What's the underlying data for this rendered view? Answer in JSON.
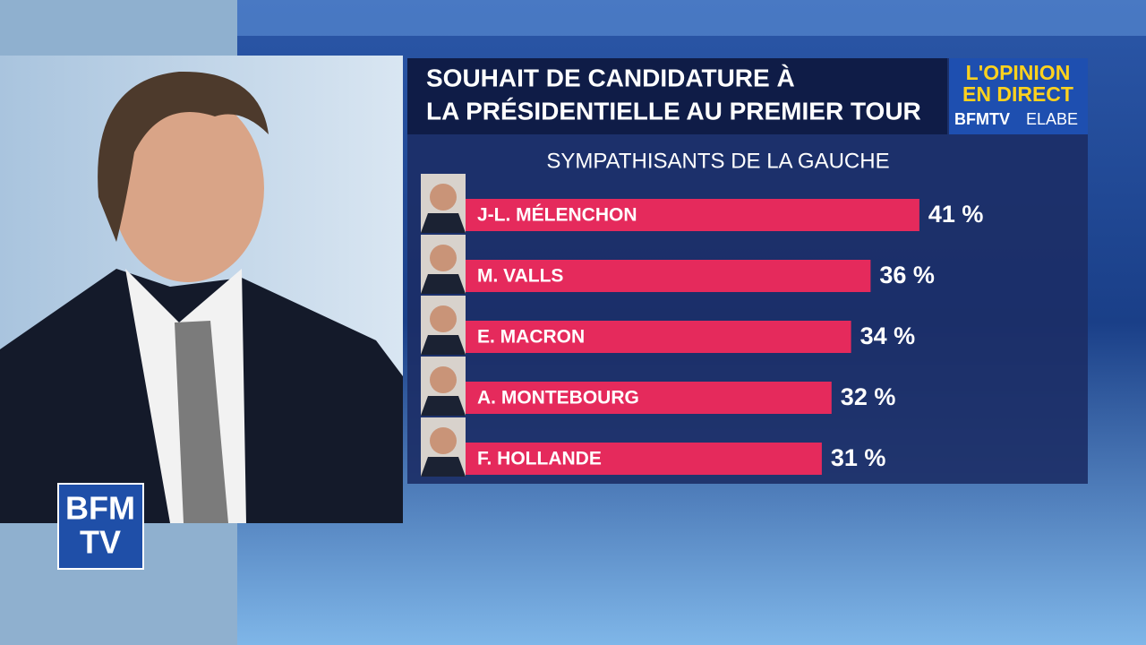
{
  "chart_data": {
    "type": "bar",
    "title": [
      "SOUHAIT DE CANDIDATURE À",
      "LA PRÉSIDENTIELLE AU PREMIER TOUR"
    ],
    "subtitle": "SYMPATHISANTS DE LA GAUCHE",
    "categories": [
      "J-L. MÉLENCHON",
      "M. VALLS",
      "E. MACRON",
      "A. MONTEBOURG",
      "F. HOLLANDE"
    ],
    "values": [
      41,
      36,
      34,
      32,
      31
    ],
    "value_labels": [
      "41 %",
      "36 %",
      "34 %",
      "32 %",
      "31 %"
    ],
    "color": "#e52a5c"
  },
  "branding": {
    "show_line1": "L'OPINION",
    "show_line2": "EN DIRECT",
    "channel": "BFMTV",
    "pollster": "ELABE",
    "logo_line1": "BFM",
    "logo_line2": "TV"
  }
}
